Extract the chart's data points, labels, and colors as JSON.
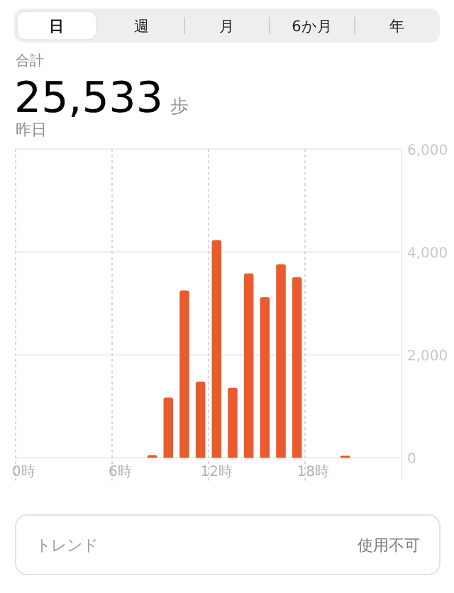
{
  "chart_data": {
    "type": "bar",
    "title": "25,533 歩",
    "subtitle": "昨日",
    "categories": [
      "0時",
      null,
      null,
      null,
      null,
      null,
      "6時",
      null,
      null,
      null,
      null,
      null,
      "12時",
      null,
      null,
      null,
      null,
      null,
      "18時",
      null,
      null,
      null,
      null,
      null
    ],
    "values": [
      null,
      null,
      null,
      null,
      null,
      null,
      null,
      null,
      50,
      1170,
      3250,
      1480,
      4230,
      1360,
      3580,
      3120,
      3760,
      3510,
      null,
      null,
      40,
      null,
      null,
      null
    ],
    "color": "#e95a2c",
    "ylim": [
      0,
      6000
    ],
    "yticks": [
      0,
      {
        "value": 2000,
        "label": "2,000"
      },
      {
        "value": 4000,
        "label": "4,000"
      },
      {
        "value": 6000,
        "label": "6,000"
      }
    ],
    "grid": true,
    "annotations": [
      "日",
      "週",
      "月",
      "6か月",
      "年",
      "合計",
      "トレンド",
      "使用不可"
    ]
  }
}
